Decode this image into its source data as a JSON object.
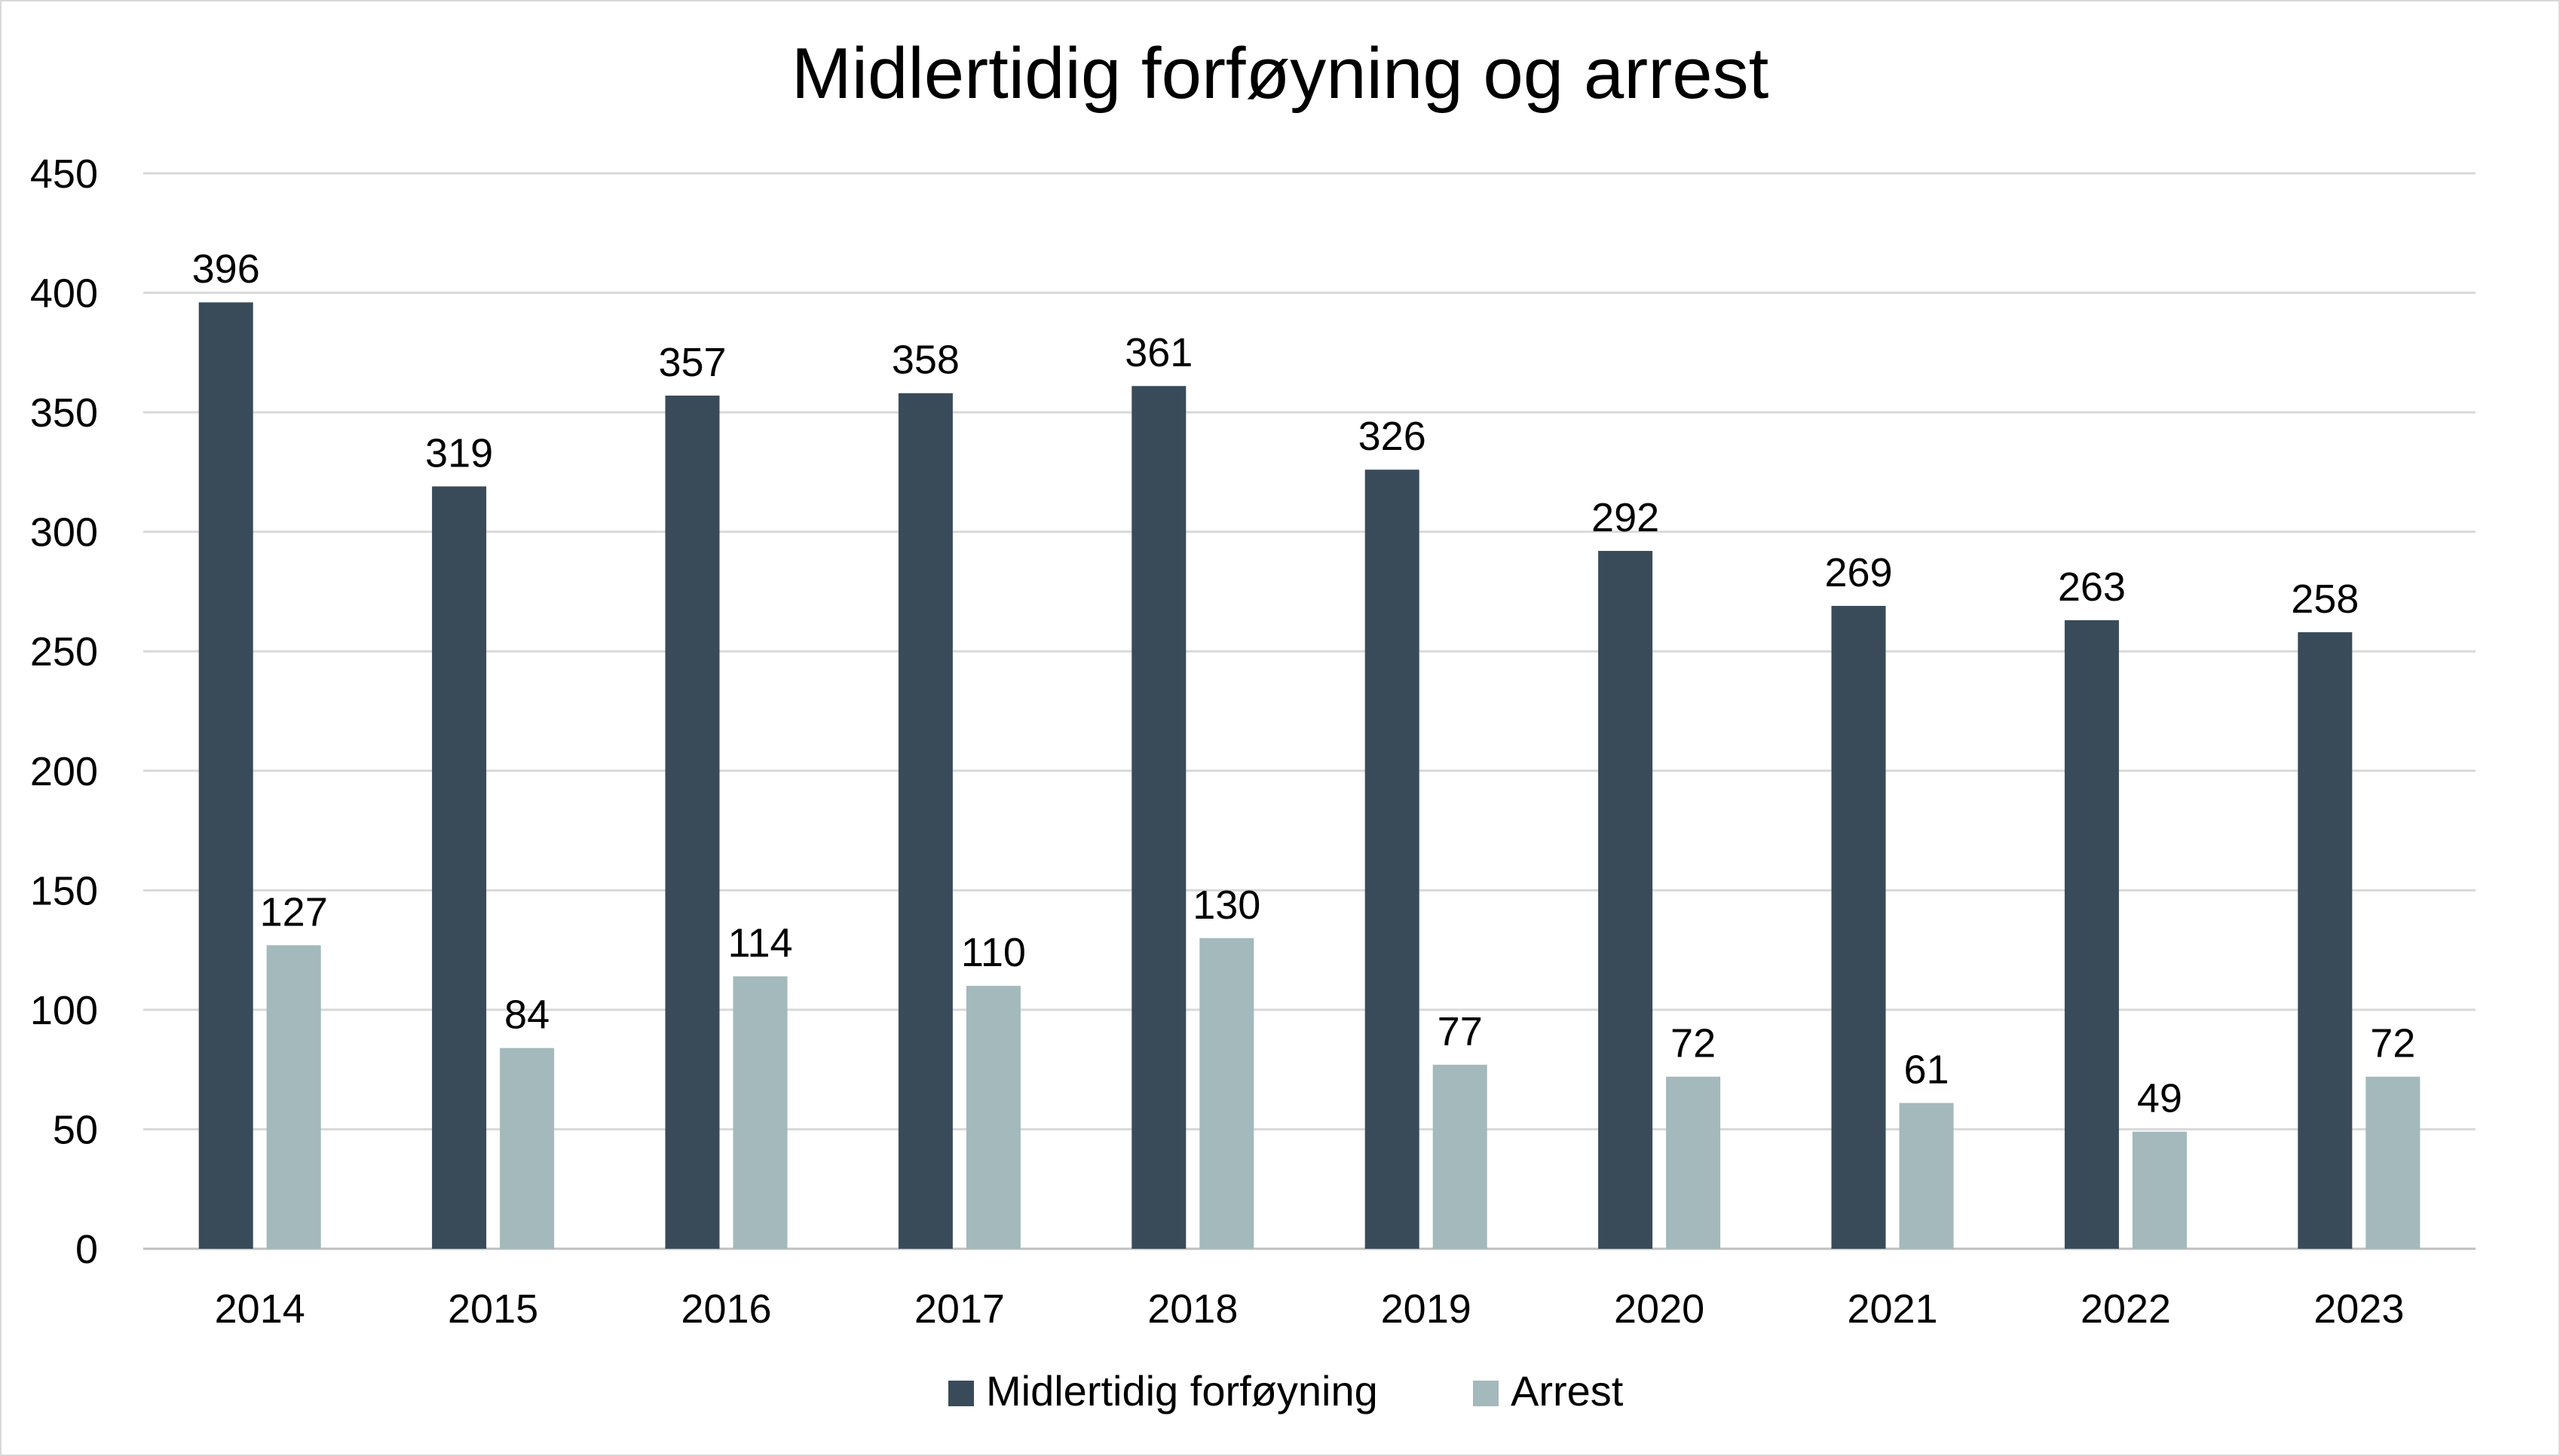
{
  "chart_data": {
    "type": "bar",
    "title": "Midlertidig forføyning og arrest",
    "xlabel": "",
    "ylabel": "",
    "ylim": [
      0,
      450
    ],
    "yticks": [
      0,
      50,
      100,
      150,
      200,
      250,
      300,
      350,
      400,
      450
    ],
    "grid": true,
    "legend_position": "bottom",
    "categories": [
      "2014",
      "2015",
      "2016",
      "2017",
      "2018",
      "2019",
      "2020",
      "2021",
      "2022",
      "2023"
    ],
    "series": [
      {
        "name": "Midlertidig forføyning",
        "color": "#394b59",
        "values": [
          396,
          319,
          357,
          358,
          361,
          326,
          292,
          269,
          263,
          258
        ]
      },
      {
        "name": "Arrest",
        "color": "#a3b9bb",
        "values": [
          127,
          84,
          114,
          110,
          130,
          77,
          72,
          61,
          49,
          72
        ]
      }
    ]
  }
}
